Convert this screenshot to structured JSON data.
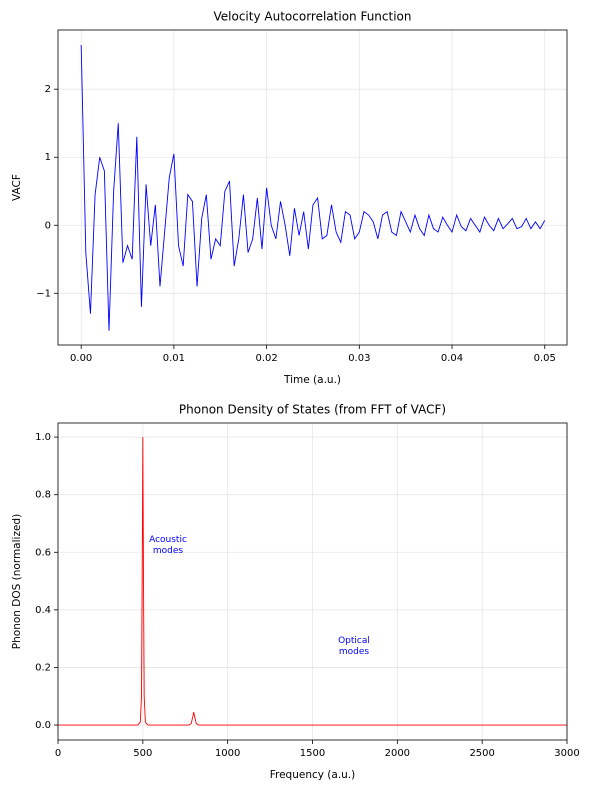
{
  "chart_data": [
    {
      "type": "line",
      "title": "Velocity Autocorrelation Function",
      "x_label": "Time (a.u.)",
      "y_label": "VACF",
      "x": [
        0,
        0.0005,
        0.001,
        0.0015,
        0.002,
        0.0025,
        0.003,
        0.0035,
        0.004,
        0.0045,
        0.005,
        0.0055,
        0.006,
        0.0065,
        0.007,
        0.0075,
        0.008,
        0.0085,
        0.009,
        0.0095,
        0.01,
        0.0105,
        0.011,
        0.0115,
        0.012,
        0.0125,
        0.013,
        0.0135,
        0.014,
        0.0145,
        0.015,
        0.0155,
        0.016,
        0.0165,
        0.017,
        0.0175,
        0.018,
        0.0185,
        0.019,
        0.0195,
        0.02,
        0.0205,
        0.021,
        0.0215,
        0.022,
        0.0225,
        0.023,
        0.0235,
        0.024,
        0.0245,
        0.025,
        0.0255,
        0.026,
        0.0265,
        0.027,
        0.0275,
        0.028,
        0.0285,
        0.029,
        0.0295,
        0.03,
        0.0305,
        0.031,
        0.0315,
        0.032,
        0.0325,
        0.033,
        0.0335,
        0.034,
        0.0345,
        0.035,
        0.0355,
        0.036,
        0.0365,
        0.037,
        0.0375,
        0.038,
        0.0385,
        0.039,
        0.0395,
        0.04,
        0.0405,
        0.041,
        0.0415,
        0.042,
        0.0425,
        0.043,
        0.0435,
        0.044,
        0.0445,
        0.045,
        0.0455,
        0.046,
        0.0465,
        0.047,
        0.0475,
        0.048,
        0.0485,
        0.049,
        0.0495,
        0.05
      ],
      "series": [
        {
          "color": "#0000ff",
          "values": [
            2.65,
            -0.4,
            -1.3,
            0.45,
            1.0,
            0.8,
            -1.55,
            0.5,
            1.5,
            -0.55,
            -0.3,
            -0.5,
            1.3,
            -1.2,
            0.6,
            -0.3,
            0.3,
            -0.9,
            -0.1,
            0.7,
            1.05,
            -0.3,
            -0.6,
            0.45,
            0.35,
            -0.9,
            0.1,
            0.45,
            -0.5,
            -0.2,
            -0.3,
            0.5,
            0.65,
            -0.6,
            -0.2,
            0.45,
            -0.4,
            -0.2,
            0.4,
            -0.35,
            0.55,
            0.0,
            -0.2,
            0.35,
            0.0,
            -0.45,
            0.25,
            -0.15,
            0.2,
            -0.35,
            0.3,
            0.4,
            -0.2,
            -0.15,
            0.3,
            -0.1,
            -0.25,
            0.2,
            0.15,
            -0.2,
            -0.1,
            0.2,
            0.15,
            0.05,
            -0.2,
            0.15,
            0.2,
            -0.1,
            -0.15,
            0.2,
            0.05,
            -0.1,
            0.15,
            -0.05,
            -0.15,
            0.15,
            -0.05,
            -0.1,
            0.12,
            0.0,
            -0.1,
            0.15,
            -0.02,
            -0.08,
            0.1,
            0.0,
            -0.1,
            0.12,
            0.0,
            -0.08,
            0.1,
            -0.05,
            0.02,
            0.1,
            -0.05,
            -0.02,
            0.1,
            -0.05,
            0.05,
            -0.05,
            0.07
          ]
        }
      ],
      "xlim": [
        -0.0025,
        0.0524
      ],
      "ylim": [
        -1.76,
        2.87
      ],
      "xticks": [
        {
          "value": 0,
          "label": "0.00"
        },
        0.01,
        0.02,
        0.03,
        0.04,
        0.05
      ],
      "yticks": [
        {
          "value": -1,
          "label": "−1"
        },
        0,
        1,
        2
      ],
      "grid": true
    },
    {
      "type": "line",
      "title": "Phonon Density of States (from FFT of VACF)",
      "x_label": "Frequency (a.u.)",
      "y_label": "Phonon DOS (normalized)",
      "x": [
        0,
        470,
        485,
        492,
        496,
        500,
        504,
        508,
        515,
        530,
        770,
        785,
        795,
        800,
        805,
        815,
        830,
        3000
      ],
      "series": [
        {
          "color": "#ff0000",
          "values": [
            0,
            0,
            0.01,
            0.1,
            0.5,
            1.0,
            0.5,
            0.1,
            0.01,
            0,
            0,
            0.005,
            0.03,
            0.045,
            0.03,
            0.005,
            0,
            0
          ]
        }
      ],
      "xlim": [
        0,
        3000
      ],
      "ylim": [
        -0.052,
        1.049
      ],
      "xticks": [
        0,
        500,
        1000,
        1500,
        2000,
        2500,
        3000
      ],
      "yticks": [
        {
          "value": 0,
          "label": "0.0"
        },
        0.2,
        0.4,
        0.6,
        0.8,
        {
          "value": 1,
          "label": "1.0"
        }
      ],
      "annotations": [
        [
          "Acoustic",
          "modes"
        ],
        [
          "Optical",
          "modes"
        ]
      ],
      "grid": true
    }
  ]
}
